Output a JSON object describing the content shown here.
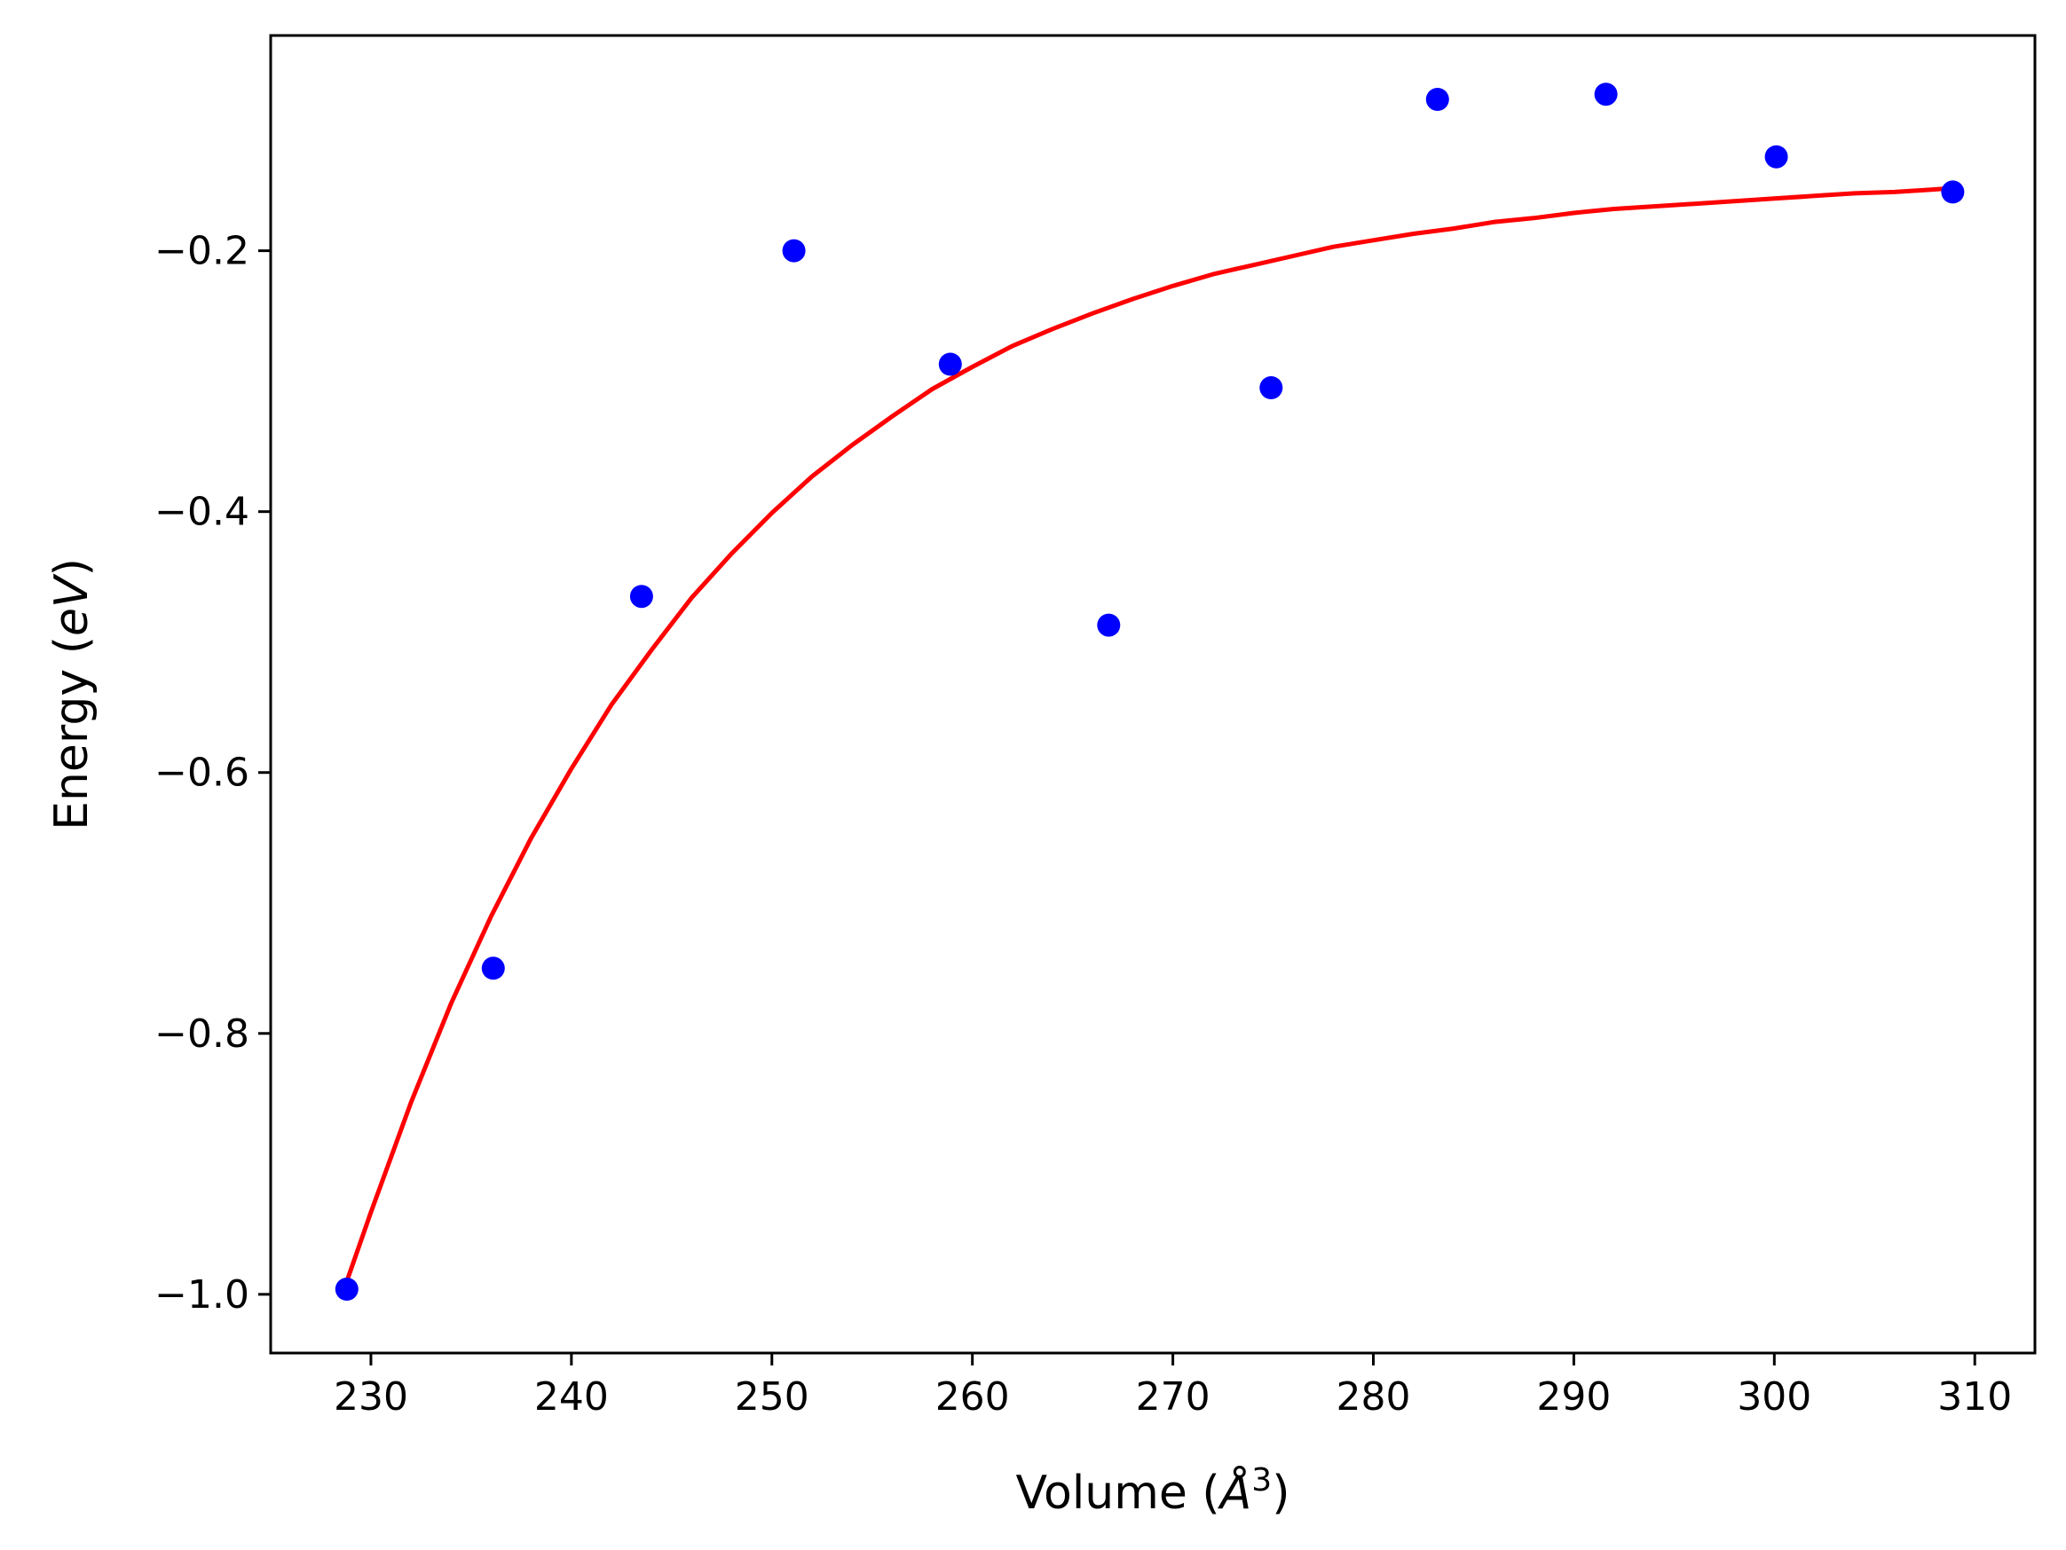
{
  "chart_data": {
    "type": "scatter",
    "title": "",
    "xlabel": {
      "prefix": "Volume (",
      "symbol": "Å",
      "exponent": "3",
      "suffix": ")"
    },
    "ylabel": {
      "prefix": "Energy (",
      "symbol": "eV",
      "suffix": ")"
    },
    "xlim": [
      225.0,
      313.0
    ],
    "ylim": [
      -1.045,
      -0.035
    ],
    "x_ticks": [
      230,
      240,
      250,
      260,
      270,
      280,
      290,
      300,
      310
    ],
    "y_ticks": [
      -1.0,
      -0.8,
      -0.6,
      -0.4,
      -0.2
    ],
    "grid": false,
    "legend": "none",
    "series": [
      {
        "kind": "points",
        "color": "#0000ff",
        "x": [
          228.8,
          236.1,
          243.5,
          251.1,
          258.9,
          266.8,
          274.9,
          283.2,
          291.6,
          300.1,
          308.9
        ],
        "y": [
          -0.996,
          -0.75,
          -0.465,
          -0.2,
          -0.287,
          -0.487,
          -0.305,
          -0.084,
          -0.08,
          -0.128,
          -0.155
        ]
      },
      {
        "kind": "fit-curve",
        "color": "#ff0000",
        "x": [
          228.8,
          230,
          232,
          234,
          236,
          238,
          240,
          242,
          244,
          246,
          248,
          250,
          252,
          254,
          256,
          258,
          260,
          262,
          264,
          266,
          268,
          270,
          272,
          274,
          276,
          278,
          280,
          282,
          284,
          286,
          288,
          290,
          292,
          294,
          296,
          298,
          300,
          302,
          304,
          306,
          308,
          308.9
        ],
        "y": [
          -0.99,
          -0.937,
          -0.853,
          -0.777,
          -0.71,
          -0.65,
          -0.597,
          -0.548,
          -0.506,
          -0.466,
          -0.432,
          -0.401,
          -0.373,
          -0.349,
          -0.327,
          -0.306,
          -0.289,
          -0.273,
          -0.26,
          -0.248,
          -0.237,
          -0.227,
          -0.218,
          -0.211,
          -0.204,
          -0.197,
          -0.192,
          -0.187,
          -0.183,
          -0.178,
          -0.175,
          -0.171,
          -0.168,
          -0.166,
          -0.164,
          -0.162,
          -0.16,
          -0.158,
          -0.156,
          -0.155,
          -0.153,
          -0.152
        ]
      }
    ]
  }
}
